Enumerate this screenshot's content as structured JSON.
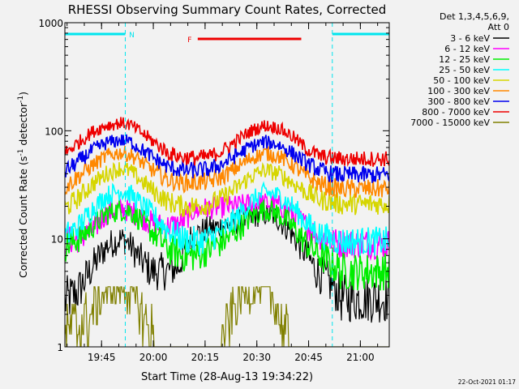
{
  "chart_data": {
    "type": "line",
    "title": "RHESSI Observing Summary Count Rates, Corrected",
    "xlabel": "Start Time (28-Aug-13 19:34:22)",
    "ylabel_main": "Corrected Count Rate (s",
    "ylabel_exp1": "-1",
    "ylabel_mid": " detector",
    "ylabel_exp2": "-1",
    "ylabel_end": ")",
    "y_scale": "log",
    "ylim": [
      1,
      1000
    ],
    "xlim_minutes": [
      0,
      94
    ],
    "x_ticks": [
      {
        "minute": 10.63,
        "label": "19:45"
      },
      {
        "minute": 25.63,
        "label": "20:00"
      },
      {
        "minute": 40.63,
        "label": "20:15"
      },
      {
        "minute": 55.63,
        "label": "20:30"
      },
      {
        "minute": 70.63,
        "label": "20:45"
      },
      {
        "minute": 85.63,
        "label": "21:00"
      }
    ],
    "y_ticks": [
      {
        "value": 1,
        "label": "1"
      },
      {
        "value": 10,
        "label": "10"
      },
      {
        "value": 100,
        "label": "100"
      },
      {
        "value": 1000,
        "label": "1000"
      }
    ],
    "legend_header": [
      "Det 1,3,4,5,6,9,",
      "Att 0"
    ],
    "legend_position": "right",
    "series": [
      {
        "name": "3 - 6 keV",
        "color": "#000000",
        "profile": [
          [
            0,
            2.6
          ],
          [
            4,
            3.3
          ],
          [
            8,
            5.5
          ],
          [
            12,
            8.5
          ],
          [
            16,
            10
          ],
          [
            18,
            9.5
          ],
          [
            21,
            7
          ],
          [
            25,
            5
          ],
          [
            29,
            5
          ],
          [
            33,
            5.5
          ],
          [
            36,
            10
          ],
          [
            40,
            12
          ],
          [
            45,
            13
          ],
          [
            49,
            14
          ],
          [
            53,
            15
          ],
          [
            57,
            17
          ],
          [
            61,
            16
          ],
          [
            65,
            12
          ],
          [
            69,
            8
          ],
          [
            73,
            5
          ],
          [
            78,
            3.6
          ],
          [
            80,
            2.8
          ],
          [
            94,
            2.8
          ]
        ]
      },
      {
        "name": "6 - 12 keV",
        "color": "#ff00ff",
        "profile": [
          [
            0,
            9.5
          ],
          [
            4,
            10
          ],
          [
            8,
            12
          ],
          [
            12,
            17
          ],
          [
            16,
            19
          ],
          [
            19,
            18
          ],
          [
            22,
            16
          ],
          [
            26,
            13.5
          ],
          [
            30,
            13
          ],
          [
            34,
            14
          ],
          [
            37,
            18
          ],
          [
            40,
            19
          ],
          [
            45,
            19.5
          ],
          [
            49,
            20
          ],
          [
            53,
            21
          ],
          [
            57,
            21.5
          ],
          [
            61,
            21
          ],
          [
            65,
            18
          ],
          [
            69,
            14
          ],
          [
            73,
            11
          ],
          [
            77,
            9.5
          ],
          [
            80,
            9
          ],
          [
            94,
            9
          ]
        ]
      },
      {
        "name": "12 - 25 keV",
        "color": "#00ee00",
        "profile": [
          [
            0,
            8.5
          ],
          [
            4,
            10
          ],
          [
            8,
            13
          ],
          [
            12,
            17
          ],
          [
            16,
            18.5
          ],
          [
            19,
            18
          ],
          [
            22,
            15
          ],
          [
            26,
            11
          ],
          [
            30,
            8
          ],
          [
            34,
            7
          ],
          [
            38,
            7
          ],
          [
            42,
            8
          ],
          [
            46,
            9.5
          ],
          [
            50,
            12
          ],
          [
            54,
            16
          ],
          [
            58,
            19
          ],
          [
            62,
            17
          ],
          [
            66,
            13
          ],
          [
            70,
            9
          ],
          [
            74,
            7
          ],
          [
            77,
            6
          ],
          [
            80,
            5
          ],
          [
            94,
            5
          ]
        ]
      },
      {
        "name": "25 - 50 keV",
        "color": "#00ffff",
        "profile": [
          [
            0,
            10.5
          ],
          [
            4,
            13
          ],
          [
            8,
            19
          ],
          [
            12,
            25
          ],
          [
            16,
            28
          ],
          [
            19,
            26
          ],
          [
            22,
            21
          ],
          [
            26,
            16
          ],
          [
            30,
            12
          ],
          [
            34,
            10
          ],
          [
            38,
            9.5
          ],
          [
            42,
            10
          ],
          [
            46,
            12
          ],
          [
            50,
            16
          ],
          [
            54,
            22
          ],
          [
            58,
            27
          ],
          [
            62,
            25
          ],
          [
            66,
            20
          ],
          [
            70,
            14
          ],
          [
            74,
            11
          ],
          [
            77,
            10
          ],
          [
            80,
            9.5
          ],
          [
            94,
            9.5
          ]
        ]
      },
      {
        "name": "50 - 100 keV",
        "color": "#d6d600",
        "profile": [
          [
            0,
            19
          ],
          [
            4,
            24
          ],
          [
            8,
            32
          ],
          [
            12,
            40
          ],
          [
            16,
            45
          ],
          [
            19,
            42
          ],
          [
            22,
            35
          ],
          [
            26,
            27
          ],
          [
            30,
            22
          ],
          [
            34,
            20
          ],
          [
            38,
            20
          ],
          [
            42,
            21
          ],
          [
            46,
            24
          ],
          [
            50,
            30
          ],
          [
            54,
            38
          ],
          [
            58,
            43
          ],
          [
            62,
            40
          ],
          [
            66,
            33
          ],
          [
            70,
            27
          ],
          [
            74,
            23
          ],
          [
            77,
            22
          ],
          [
            80,
            21
          ],
          [
            94,
            21
          ]
        ]
      },
      {
        "name": "100 - 300 keV",
        "color": "#ff8800",
        "profile": [
          [
            0,
            30
          ],
          [
            4,
            38
          ],
          [
            8,
            48
          ],
          [
            12,
            58
          ],
          [
            16,
            63
          ],
          [
            19,
            60
          ],
          [
            22,
            52
          ],
          [
            26,
            42
          ],
          [
            30,
            35
          ],
          [
            34,
            33
          ],
          [
            38,
            33
          ],
          [
            42,
            34
          ],
          [
            46,
            38
          ],
          [
            50,
            46
          ],
          [
            54,
            56
          ],
          [
            58,
            62
          ],
          [
            62,
            58
          ],
          [
            66,
            48
          ],
          [
            70,
            38
          ],
          [
            74,
            32
          ],
          [
            77,
            30
          ],
          [
            80,
            29
          ],
          [
            94,
            29
          ]
        ]
      },
      {
        "name": "300 - 800 keV",
        "color": "#0000ee",
        "profile": [
          [
            0,
            42
          ],
          [
            4,
            52
          ],
          [
            8,
            66
          ],
          [
            12,
            77
          ],
          [
            16,
            82
          ],
          [
            19,
            79
          ],
          [
            22,
            68
          ],
          [
            26,
            55
          ],
          [
            30,
            46
          ],
          [
            34,
            43
          ],
          [
            38,
            43
          ],
          [
            42,
            44
          ],
          [
            46,
            50
          ],
          [
            50,
            60
          ],
          [
            54,
            72
          ],
          [
            58,
            79
          ],
          [
            62,
            74
          ],
          [
            66,
            62
          ],
          [
            70,
            50
          ],
          [
            74,
            43
          ],
          [
            77,
            40
          ],
          [
            80,
            39
          ],
          [
            94,
            39
          ]
        ]
      },
      {
        "name": "800 - 7000 keV",
        "color": "#ee0000",
        "profile": [
          [
            0,
            62
          ],
          [
            4,
            78
          ],
          [
            8,
            98
          ],
          [
            12,
            112
          ],
          [
            16,
            118
          ],
          [
            19,
            113
          ],
          [
            22,
            97
          ],
          [
            26,
            78
          ],
          [
            30,
            62
          ],
          [
            34,
            57
          ],
          [
            38,
            56
          ],
          [
            42,
            58
          ],
          [
            46,
            66
          ],
          [
            50,
            82
          ],
          [
            54,
            100
          ],
          [
            58,
            112
          ],
          [
            62,
            106
          ],
          [
            66,
            88
          ],
          [
            70,
            68
          ],
          [
            74,
            58
          ],
          [
            77,
            56
          ],
          [
            80,
            55
          ],
          [
            94,
            55
          ]
        ]
      },
      {
        "name": "7000 - 15000 keV",
        "color": "#808000",
        "profile": [
          [
            0,
            1.25
          ],
          [
            3,
            1.5
          ],
          [
            5,
            1.6
          ],
          [
            7,
            1.8
          ],
          [
            9,
            2.4
          ],
          [
            11,
            3.1
          ],
          [
            13,
            3.5
          ],
          [
            16,
            3.6
          ],
          [
            19,
            3.2
          ],
          [
            21,
            2.5
          ],
          [
            23,
            1.8
          ],
          [
            25,
            1.2
          ],
          [
            27,
            1
          ],
          [
            45,
            1
          ],
          [
            47,
            1.4
          ],
          [
            49,
            2.2
          ],
          [
            51,
            2.9
          ],
          [
            53,
            3.4
          ],
          [
            56,
            3.6
          ],
          [
            59,
            3.3
          ],
          [
            61,
            2.5
          ],
          [
            63,
            1.7
          ],
          [
            65,
            1
          ],
          [
            94,
            1
          ]
        ]
      }
    ],
    "bars": [
      {
        "label": "N",
        "color": "#00e5ee",
        "segments": [
          [
            0,
            17.5
          ],
          [
            77.5,
            94
          ]
        ]
      },
      {
        "label": "F",
        "color": "#ee0000",
        "segments": [
          [
            38.5,
            68.5
          ]
        ]
      }
    ],
    "vlines_minutes": [
      17.5,
      77.5,
      94
    ],
    "vline_color": "#00e5ee",
    "footer_date": "22-Oct-2021 01:17"
  }
}
